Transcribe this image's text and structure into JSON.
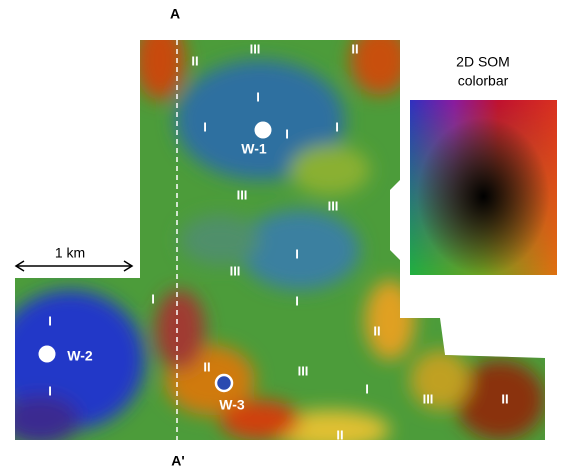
{
  "section_markers": {
    "start": "A",
    "end": "A'"
  },
  "scale_bar": "1 km",
  "colorbar": {
    "line1": "2D SOM",
    "line2": "colorbar"
  },
  "wells": [
    "W-1",
    "W-2",
    "W-3"
  ],
  "zones": [
    "III",
    "II",
    "II",
    "I",
    "I",
    "I",
    "I",
    "III",
    "III",
    "I",
    "III",
    "I",
    "I",
    "I",
    "II",
    "II",
    "III",
    "I",
    "I",
    "III",
    "II",
    "II"
  ]
}
